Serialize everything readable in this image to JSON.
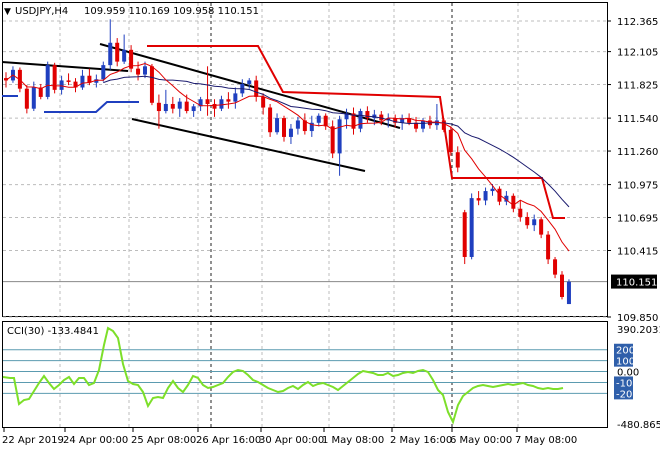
{
  "header": {
    "arrow": "▼",
    "symbol_tf": "USDJPY,H4",
    "ohlc": "109.959 110.169 109.958 110.151"
  },
  "cci": {
    "label": "CCI(30) -133.4841",
    "scale_labels": [
      "390.2031",
      "200",
      "100",
      "0.00",
      "-100",
      "-200",
      "-480.8651"
    ],
    "level_lines": [
      200,
      100,
      0,
      -100,
      -200
    ],
    "ylim": [
      -480.8651,
      390.2031
    ]
  },
  "price_axis": {
    "ticks": [
      "112.365",
      "112.105",
      "111.825",
      "111.540",
      "111.260",
      "110.975",
      "110.695",
      "110.415",
      "110.151",
      "109.850"
    ],
    "current_price": "110.151",
    "ylim": [
      109.82,
      112.45
    ]
  },
  "time_axis": {
    "labels": [
      "22 Apr 2019",
      "24 Apr 00:00",
      "25 Apr 08:00",
      "26 Apr 16:00",
      "30 Apr 00:00",
      "1 May 08:00",
      "2 May 16:00",
      "6 May 00:00",
      "7 May 08:00"
    ]
  },
  "colors": {
    "bull": "#1f3fbf",
    "bear": "#e00000",
    "ma_fast": "#e00000",
    "ma_slow": "#1a1a6e",
    "stop_red": "#e00000",
    "stop_blue": "#1f3fbf",
    "cci_line": "#7ddf2a",
    "trend": "#000000",
    "current_box": "#000000"
  },
  "chart_data": {
    "type": "candlestick",
    "series": [
      {
        "name": "USDJPY,H4",
        "ohlc": [
          [
            111.88,
            111.93,
            111.8,
            111.86
          ],
          [
            111.86,
            111.98,
            111.84,
            111.95
          ],
          [
            111.95,
            111.97,
            111.76,
            111.79
          ],
          [
            111.79,
            111.82,
            111.58,
            111.62
          ],
          [
            111.62,
            111.85,
            111.6,
            111.8
          ],
          [
            111.8,
            111.83,
            111.7,
            111.72
          ],
          [
            111.72,
            112.02,
            111.7,
            111.99
          ],
          [
            111.99,
            112.01,
            111.75,
            111.78
          ],
          [
            111.78,
            111.9,
            111.74,
            111.86
          ],
          [
            111.86,
            111.92,
            111.82,
            111.85
          ],
          [
            111.85,
            111.88,
            111.76,
            111.8
          ],
          [
            111.8,
            111.95,
            111.78,
            111.9
          ],
          [
            111.9,
            111.96,
            111.82,
            111.84
          ],
          [
            111.84,
            111.91,
            111.8,
            111.87
          ],
          [
            111.87,
            112.02,
            111.85,
            111.99
          ],
          [
            111.99,
            112.38,
            111.95,
            112.18
          ],
          [
            112.18,
            112.22,
            111.98,
            112.02
          ],
          [
            112.02,
            112.25,
            112.0,
            112.12
          ],
          [
            112.12,
            112.16,
            111.93,
            111.96
          ],
          [
            111.96,
            112.02,
            111.86,
            111.91
          ],
          [
            111.91,
            112.02,
            111.88,
            111.98
          ],
          [
            111.98,
            112.0,
            111.65,
            111.67
          ],
          [
            111.67,
            111.74,
            111.45,
            111.6
          ],
          [
            111.6,
            111.78,
            111.58,
            111.66
          ],
          [
            111.66,
            111.72,
            111.58,
            111.62
          ],
          [
            111.62,
            111.71,
            111.55,
            111.68
          ],
          [
            111.68,
            111.74,
            111.58,
            111.6
          ],
          [
            111.6,
            111.66,
            111.55,
            111.64
          ],
          [
            111.64,
            111.72,
            111.6,
            111.7
          ],
          [
            111.7,
            111.98,
            111.56,
            111.66
          ],
          [
            111.66,
            111.7,
            111.55,
            111.62
          ],
          [
            111.62,
            111.73,
            111.6,
            111.7
          ],
          [
            111.7,
            111.76,
            111.62,
            111.68
          ],
          [
            111.68,
            111.8,
            111.62,
            111.75
          ],
          [
            111.75,
            111.87,
            111.72,
            111.83
          ],
          [
            111.83,
            111.88,
            111.79,
            111.86
          ],
          [
            111.86,
            111.9,
            111.68,
            111.72
          ],
          [
            111.72,
            111.75,
            111.57,
            111.63
          ],
          [
            111.63,
            111.66,
            111.38,
            111.42
          ],
          [
            111.42,
            111.58,
            111.4,
            111.54
          ],
          [
            111.54,
            111.56,
            111.34,
            111.38
          ],
          [
            111.38,
            111.49,
            111.32,
            111.45
          ],
          [
            111.45,
            111.55,
            111.4,
            111.52
          ],
          [
            111.52,
            111.58,
            111.4,
            111.43
          ],
          [
            111.43,
            111.56,
            111.38,
            111.5
          ],
          [
            111.5,
            111.58,
            111.47,
            111.56
          ],
          [
            111.56,
            111.58,
            111.44,
            111.47
          ],
          [
            111.47,
            111.52,
            111.2,
            111.24
          ],
          [
            111.24,
            111.56,
            111.05,
            111.53
          ],
          [
            111.53,
            111.62,
            111.45,
            111.58
          ],
          [
            111.58,
            111.63,
            111.4,
            111.45
          ],
          [
            111.45,
            111.62,
            111.42,
            111.6
          ],
          [
            111.6,
            111.64,
            111.5,
            111.54
          ],
          [
            111.54,
            111.61,
            111.48,
            111.57
          ],
          [
            111.57,
            111.6,
            111.48,
            111.52
          ],
          [
            111.52,
            111.58,
            111.46,
            111.54
          ],
          [
            111.54,
            111.57,
            111.46,
            111.5
          ],
          [
            111.5,
            111.57,
            111.44,
            111.54
          ],
          [
            111.54,
            111.58,
            111.48,
            111.5
          ],
          [
            111.5,
            111.55,
            111.42,
            111.45
          ],
          [
            111.45,
            111.54,
            111.42,
            111.52
          ],
          [
            111.52,
            111.56,
            111.45,
            111.48
          ],
          [
            111.48,
            111.66,
            111.44,
            111.52
          ],
          [
            111.52,
            111.54,
            111.42,
            111.44
          ],
          [
            111.44,
            111.47,
            111.22,
            111.25
          ],
          [
            111.25,
            111.3,
            111.08,
            111.12
          ],
          [
            110.74,
            110.76,
            110.3,
            110.36
          ],
          [
            110.36,
            110.9,
            110.34,
            110.86
          ],
          [
            110.86,
            110.92,
            110.8,
            110.84
          ],
          [
            110.84,
            110.95,
            110.8,
            110.92
          ],
          [
            110.92,
            110.98,
            110.88,
            110.94
          ],
          [
            110.94,
            110.96,
            110.8,
            110.83
          ],
          [
            110.83,
            110.92,
            110.8,
            110.88
          ],
          [
            110.88,
            110.9,
            110.74,
            110.77
          ],
          [
            110.77,
            110.84,
            110.66,
            110.7
          ],
          [
            110.7,
            110.74,
            110.6,
            110.63
          ],
          [
            110.63,
            110.72,
            110.58,
            110.68
          ],
          [
            110.68,
            110.7,
            110.52,
            110.55
          ],
          [
            110.55,
            110.58,
            110.3,
            110.34
          ],
          [
            110.34,
            110.36,
            110.18,
            110.21
          ],
          [
            110.21,
            110.24,
            110.0,
            110.02
          ],
          [
            109.96,
            110.17,
            109.96,
            110.15
          ]
        ]
      }
    ]
  }
}
